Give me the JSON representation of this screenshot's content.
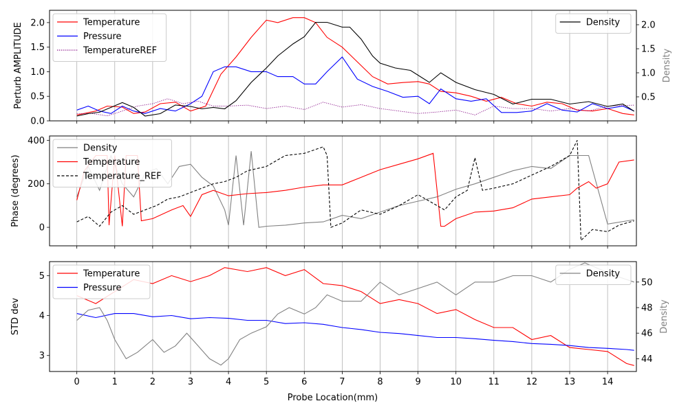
{
  "chart_data": [
    {
      "type": "line",
      "ylabel": "Perturb AMPLITUDE",
      "y2label": "Density",
      "ylim": [
        0,
        2.25
      ],
      "y2lim": [
        0,
        2.3
      ],
      "yticks": [
        "0.0",
        "0.5",
        "1.0",
        "1.5",
        "2.0"
      ],
      "y2ticks": [
        "0.5",
        "1.0",
        "1.5",
        "2.0"
      ],
      "legend_left": "upper-left",
      "legend_right": "upper-right",
      "vgrid": true,
      "series": [
        {
          "name": "Temperature",
          "axis": "left",
          "color": "#ff0000",
          "style": "solid",
          "x": [
            0,
            0.5,
            0.8,
            1.2,
            1.5,
            1.8,
            2.2,
            2.6,
            3.0,
            3.4,
            3.8,
            4.2,
            4.6,
            5.0,
            5.3,
            5.7,
            6.0,
            6.3,
            6.6,
            7.0,
            7.4,
            7.8,
            8.2,
            8.6,
            9.0,
            9.3,
            9.6,
            10.0,
            10.4,
            10.8,
            11.2,
            11.6,
            12.0,
            12.4,
            12.8,
            13.2,
            13.6,
            14.0,
            14.4,
            14.7
          ],
          "y": [
            0.12,
            0.2,
            0.3,
            0.28,
            0.15,
            0.18,
            0.35,
            0.38,
            0.2,
            0.3,
            0.95,
            1.3,
            1.7,
            2.05,
            2.0,
            2.1,
            2.1,
            2.0,
            1.7,
            1.5,
            1.2,
            0.9,
            0.75,
            0.78,
            0.8,
            0.75,
            0.6,
            0.57,
            0.5,
            0.4,
            0.48,
            0.35,
            0.3,
            0.38,
            0.35,
            0.22,
            0.2,
            0.25,
            0.15,
            0.12
          ]
        },
        {
          "name": "Pressure",
          "axis": "left",
          "color": "#0000ff",
          "style": "solid",
          "x": [
            0,
            0.3,
            0.6,
            0.9,
            1.2,
            1.5,
            1.8,
            2.2,
            2.6,
            3.0,
            3.3,
            3.6,
            3.9,
            4.2,
            4.6,
            5.0,
            5.3,
            5.7,
            6.0,
            6.3,
            6.6,
            7.0,
            7.4,
            7.8,
            8.2,
            8.6,
            9.0,
            9.3,
            9.6,
            10.0,
            10.4,
            10.8,
            11.2,
            11.6,
            12.0,
            12.4,
            12.8,
            13.2,
            13.6,
            14.0,
            14.4,
            14.7
          ],
          "y": [
            0.22,
            0.3,
            0.2,
            0.15,
            0.3,
            0.2,
            0.15,
            0.25,
            0.2,
            0.35,
            0.5,
            1.0,
            1.1,
            1.1,
            1.0,
            1.0,
            0.9,
            0.9,
            0.75,
            0.75,
            1.0,
            1.3,
            0.85,
            0.7,
            0.6,
            0.48,
            0.5,
            0.35,
            0.65,
            0.45,
            0.4,
            0.45,
            0.17,
            0.17,
            0.2,
            0.35,
            0.22,
            0.18,
            0.35,
            0.25,
            0.3,
            0.2
          ]
        },
        {
          "name": "TemperatureREF",
          "axis": "left",
          "color": "#800080",
          "style": "dotted",
          "x": [
            0,
            0.4,
            0.8,
            1.2,
            1.6,
            2.0,
            2.4,
            2.8,
            3.2,
            3.6,
            4.0,
            4.5,
            5.0,
            5.5,
            6.0,
            6.5,
            7.0,
            7.5,
            8.0,
            8.5,
            9.0,
            9.5,
            10.0,
            10.5,
            11.0,
            11.5,
            12.0,
            12.5,
            13.0,
            13.5,
            14.0,
            14.7
          ],
          "y": [
            0.15,
            0.15,
            0.1,
            0.2,
            0.3,
            0.35,
            0.45,
            0.35,
            0.4,
            0.3,
            0.3,
            0.32,
            0.25,
            0.3,
            0.23,
            0.38,
            0.28,
            0.33,
            0.25,
            0.2,
            0.15,
            0.18,
            0.22,
            0.12,
            0.3,
            0.25,
            0.25,
            0.2,
            0.25,
            0.2,
            0.3,
            0.32
          ]
        },
        {
          "name": "Density",
          "axis": "right",
          "color": "#000000",
          "style": "solid",
          "x": [
            0,
            0.3,
            0.6,
            0.9,
            1.2,
            1.5,
            1.8,
            2.2,
            2.6,
            3.0,
            3.3,
            3.6,
            3.9,
            4.2,
            4.6,
            5.0,
            5.3,
            5.7,
            6.0,
            6.3,
            6.6,
            7.0,
            7.2,
            7.5,
            7.8,
            8.0,
            8.4,
            8.8,
            9.0,
            9.3,
            9.6,
            10.0,
            10.5,
            11.0,
            11.5,
            12.0,
            12.5,
            13.0,
            13.5,
            14.0,
            14.4,
            14.7
          ],
          "y": [
            0.1,
            0.15,
            0.18,
            0.28,
            0.38,
            0.28,
            0.1,
            0.15,
            0.33,
            0.3,
            0.25,
            0.28,
            0.25,
            0.42,
            0.8,
            1.1,
            1.35,
            1.6,
            1.75,
            2.05,
            2.05,
            1.95,
            1.95,
            1.7,
            1.35,
            1.2,
            1.1,
            1.05,
            0.95,
            0.8,
            1.0,
            0.8,
            0.65,
            0.55,
            0.35,
            0.45,
            0.45,
            0.35,
            0.4,
            0.3,
            0.35,
            0.2
          ]
        }
      ]
    },
    {
      "type": "line",
      "ylabel": "Phase (degrees)",
      "ylim": [
        -85,
        420
      ],
      "yticks": [
        "0",
        "200",
        "400"
      ],
      "legend": "upper-left",
      "vgrid": true,
      "series": [
        {
          "name": "Density",
          "color": "#808080",
          "style": "solid",
          "x": [
            0,
            0.3,
            0.6,
            0.9,
            1.2,
            1.5,
            1.8,
            2.1,
            2.4,
            2.7,
            3.0,
            3.3,
            3.6,
            3.9,
            4.0,
            4.2,
            4.4,
            4.6,
            4.8,
            5.0,
            5.5,
            6.0,
            6.5,
            7.0,
            7.5,
            8.0,
            8.5,
            9.0,
            9.5,
            10.0,
            10.5,
            11.0,
            11.5,
            12.0,
            12.5,
            13.0,
            13.5,
            14.0,
            14.7
          ],
          "y": [
            140,
            280,
            170,
            330,
            200,
            140,
            250,
            270,
            200,
            280,
            290,
            230,
            190,
            80,
            10,
            330,
            10,
            350,
            0,
            5,
            10,
            20,
            25,
            55,
            40,
            70,
            100,
            120,
            140,
            175,
            200,
            230,
            260,
            280,
            270,
            330,
            330,
            15,
            35
          ]
        },
        {
          "name": "Temperature",
          "color": "#ff0000",
          "style": "solid",
          "x": [
            0,
            0.2,
            0.5,
            0.8,
            0.85,
            1.0,
            1.2,
            1.3,
            1.6,
            1.7,
            2.0,
            2.5,
            2.8,
            3.0,
            3.3,
            3.6,
            4.0,
            4.5,
            5.0,
            5.5,
            6.0,
            6.5,
            7.0,
            7.5,
            8.0,
            8.5,
            9.0,
            9.4,
            9.6,
            9.7,
            10.0,
            10.5,
            11.0,
            11.5,
            12.0,
            12.5,
            13.0,
            13.2,
            13.5,
            13.7,
            14.0,
            14.3,
            14.7
          ],
          "y": [
            125,
            260,
            330,
            330,
            10,
            330,
            5,
            330,
            330,
            30,
            40,
            80,
            100,
            50,
            150,
            170,
            145,
            155,
            160,
            170,
            185,
            195,
            195,
            230,
            265,
            290,
            315,
            340,
            5,
            5,
            40,
            70,
            75,
            90,
            130,
            140,
            150,
            180,
            210,
            180,
            200,
            300,
            310
          ]
        },
        {
          "name": "Temperature_REF",
          "color": "#000000",
          "style": "dashed",
          "x": [
            0,
            0.3,
            0.6,
            0.9,
            1.2,
            1.5,
            1.8,
            2.1,
            2.4,
            2.7,
            3.0,
            3.3,
            3.6,
            3.9,
            4.2,
            4.5,
            5.0,
            5.5,
            6.0,
            6.5,
            6.6,
            6.7,
            7.0,
            7.5,
            8.0,
            8.5,
            9.0,
            9.5,
            9.7,
            10.0,
            10.3,
            10.5,
            10.7,
            11.0,
            11.5,
            12.0,
            12.5,
            13.0,
            13.2,
            13.3,
            13.6,
            14.0,
            14.3,
            14.7
          ],
          "y": [
            25,
            50,
            5,
            70,
            100,
            60,
            80,
            100,
            130,
            140,
            160,
            180,
            200,
            210,
            230,
            260,
            280,
            330,
            340,
            370,
            330,
            0,
            20,
            80,
            60,
            100,
            150,
            100,
            80,
            140,
            170,
            320,
            170,
            180,
            200,
            240,
            280,
            330,
            400,
            -60,
            -10,
            -20,
            10,
            30
          ]
        }
      ]
    },
    {
      "type": "line",
      "ylabel": "STD dev",
      "y2label": "Density",
      "xlabel": "Probe Location(mm)",
      "ylim": [
        2.6,
        5.35
      ],
      "y2lim": [
        43.0,
        51.6
      ],
      "yticks": [
        "3",
        "4",
        "5"
      ],
      "y2ticks": [
        "44",
        "46",
        "48",
        "50"
      ],
      "xticks": [
        "0",
        "1",
        "2",
        "3",
        "4",
        "5",
        "6",
        "7",
        "8",
        "9",
        "10",
        "11",
        "12",
        "13",
        "14"
      ],
      "legend_left": "upper-left",
      "legend_right": "upper-right",
      "vgrid": true,
      "series": [
        {
          "name": "Temperature",
          "axis": "left",
          "color": "#ff0000",
          "style": "solid",
          "x": [
            0,
            0.5,
            1.0,
            1.5,
            2.0,
            2.5,
            3.0,
            3.5,
            3.9,
            4.5,
            5.0,
            5.5,
            6.0,
            6.5,
            7.0,
            7.5,
            8.0,
            8.5,
            9.0,
            9.5,
            10.0,
            10.5,
            11.0,
            11.5,
            12.0,
            12.5,
            13.0,
            13.5,
            14.0,
            14.5,
            14.7
          ],
          "y": [
            4.5,
            4.3,
            4.6,
            4.9,
            4.8,
            5.0,
            4.85,
            5.0,
            5.2,
            5.1,
            5.2,
            5.0,
            5.15,
            4.8,
            4.75,
            4.6,
            4.3,
            4.4,
            4.3,
            4.05,
            4.15,
            3.9,
            3.7,
            3.7,
            3.4,
            3.5,
            3.2,
            3.15,
            3.1,
            2.8,
            2.75
          ]
        },
        {
          "name": "Pressure",
          "axis": "left",
          "color": "#0000ff",
          "style": "solid",
          "x": [
            0,
            0.5,
            1.0,
            1.5,
            2.0,
            2.5,
            3.0,
            3.5,
            4.0,
            4.5,
            5.0,
            5.5,
            6.0,
            6.5,
            7.0,
            7.5,
            8.0,
            8.5,
            9.0,
            9.5,
            10.0,
            10.5,
            11.0,
            11.5,
            12.0,
            12.5,
            13.0,
            13.5,
            14.0,
            14.5,
            14.7
          ],
          "y": [
            4.05,
            3.95,
            4.05,
            4.05,
            3.97,
            4.0,
            3.92,
            3.95,
            3.93,
            3.88,
            3.88,
            3.8,
            3.82,
            3.78,
            3.7,
            3.65,
            3.58,
            3.55,
            3.5,
            3.45,
            3.45,
            3.42,
            3.38,
            3.35,
            3.3,
            3.28,
            3.25,
            3.2,
            3.18,
            3.15,
            3.13
          ]
        },
        {
          "name": "Density",
          "axis": "right",
          "color": "#808080",
          "style": "solid",
          "x": [
            0,
            0.3,
            0.6,
            0.8,
            1.0,
            1.3,
            1.6,
            2.0,
            2.3,
            2.6,
            2.9,
            3.2,
            3.5,
            3.8,
            4.0,
            4.3,
            4.6,
            5.0,
            5.3,
            5.6,
            6.0,
            6.3,
            6.6,
            7.0,
            7.5,
            8.0,
            8.5,
            9.0,
            9.5,
            10.0,
            10.5,
            11.0,
            11.5,
            12.0,
            12.5,
            13.0,
            13.4,
            13.8,
            14.2,
            14.7
          ],
          "y": [
            47.0,
            47.8,
            48.0,
            47.0,
            45.5,
            44.0,
            44.5,
            45.5,
            44.5,
            45.0,
            46.0,
            45.0,
            44.0,
            43.5,
            44.0,
            45.5,
            46.0,
            46.5,
            47.5,
            48.0,
            47.5,
            48.0,
            49.0,
            48.5,
            48.5,
            50.0,
            49.0,
            49.5,
            50.0,
            49.0,
            50.0,
            50.0,
            50.5,
            50.5,
            50.0,
            51.0,
            51.5,
            51.0,
            50.5,
            50.0
          ]
        }
      ]
    }
  ]
}
